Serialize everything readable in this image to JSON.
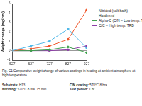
{
  "chart_data": {
    "type": "line",
    "y_label": "Weight change (mg/cm²)",
    "x": [
      527,
      627,
      727,
      827,
      927
    ],
    "xlim": [
      527,
      927
    ],
    "xticks": [
      527,
      627,
      727,
      827,
      927
    ],
    "ylim": [
      -1,
      5
    ],
    "yticks": [
      -1,
      0,
      1,
      2,
      3,
      4,
      5
    ],
    "grid": false,
    "legend": "right",
    "series": [
      {
        "name": "Nitrided (salt bath)",
        "color": "#4fb8e8",
        "marker": "circle",
        "line_style": "solid",
        "values": [
          0,
          0.5,
          1.0,
          2.3,
          0.3
        ]
      },
      {
        "name": "Hardened",
        "color": "#f0562a",
        "marker": "circle",
        "line_style": "solid",
        "values": [
          0,
          0.2,
          0.5,
          1.2,
          4.3
        ]
      },
      {
        "name": "Alpha-C (C/N – Low temp. TRD)",
        "color": "#3fa34d",
        "marker": "circle",
        "line_style": "solid",
        "values": [
          0,
          0,
          0.1,
          0.4,
          -0.2
        ]
      },
      {
        "name": "C/C – High temp. TRD",
        "color": "#8e3ea8",
        "marker": "circle",
        "line_style": "solid",
        "values": [
          0,
          0,
          0,
          0.1,
          0.5
        ]
      }
    ]
  },
  "caption": "Fig. C1  Comparative weight change of various coatings in heating at ambient atmosphere at high temperature",
  "details": [
    [
      {
        "label": "Substrate:",
        "value": "H13"
      },
      {
        "label": "Nitriding:",
        "value": "570°C 8 hrs. 15 min."
      }
    ],
    [
      {
        "label": "C/N coating:",
        "value": "570°C 8 hrs."
      },
      {
        "label": "Test period:",
        "value": "1 hr."
      }
    ]
  ]
}
